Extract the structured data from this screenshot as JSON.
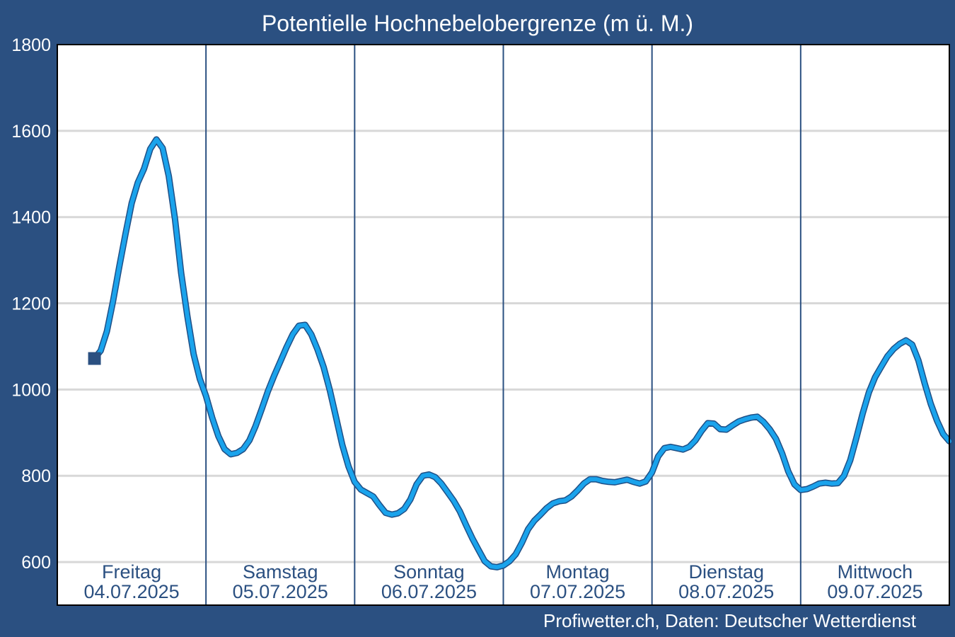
{
  "chart_data": {
    "type": "line",
    "title": "Potentielle Hochnebelobergrenze (m ü. M.)",
    "ylim": [
      500,
      1800
    ],
    "xlim": [
      0,
      144
    ],
    "yticks": [
      600,
      800,
      1000,
      1200,
      1400,
      1600,
      1800
    ],
    "grid": true,
    "days": [
      {
        "weekday": "Freitag",
        "date": "04.07.2025"
      },
      {
        "weekday": "Samstag",
        "date": "05.07.2025"
      },
      {
        "weekday": "Sonntag",
        "date": "06.07.2025"
      },
      {
        "weekday": "Montag",
        "date": "07.07.2025"
      },
      {
        "weekday": "Dienstag",
        "date": "08.07.2025"
      },
      {
        "weekday": "Mittwoch",
        "date": "09.07.2025"
      }
    ],
    "series": [
      {
        "color": "#1aa3ec",
        "start_marker_color": "#2b5081",
        "x": [
          6,
          7,
          8,
          9,
          10,
          11,
          12,
          13,
          14,
          15,
          16,
          17,
          18,
          19,
          20,
          21,
          22,
          23,
          24,
          25,
          26,
          27,
          28,
          29,
          30,
          31,
          32,
          33,
          34,
          35,
          36,
          37,
          38,
          39,
          40,
          41,
          42,
          43,
          44,
          45,
          46,
          47,
          48,
          49,
          50,
          51,
          52,
          53,
          54,
          55,
          56,
          57,
          58,
          59,
          60,
          61,
          62,
          63,
          64,
          65,
          66,
          67,
          68,
          69,
          70,
          71,
          72,
          73,
          74,
          75,
          76,
          77,
          78,
          79,
          80,
          81,
          82,
          83,
          84,
          85,
          86,
          87,
          88,
          89,
          90,
          91,
          92,
          93,
          94,
          95,
          96,
          97,
          98,
          99,
          100,
          101,
          102,
          103,
          104,
          105,
          106,
          107,
          108,
          109,
          110,
          111,
          112,
          113,
          114,
          115,
          116,
          117,
          118,
          119,
          120,
          121,
          122,
          123,
          124,
          125,
          126,
          127,
          128,
          129,
          130,
          131,
          132,
          133,
          134,
          135,
          136,
          137,
          138,
          139,
          140,
          141,
          142,
          143,
          144
        ],
        "y": [
          1072,
          1090,
          1135,
          1205,
          1285,
          1360,
          1432,
          1480,
          1512,
          1558,
          1580,
          1560,
          1495,
          1395,
          1270,
          1170,
          1082,
          1025,
          985,
          935,
          892,
          862,
          850,
          853,
          862,
          882,
          915,
          955,
          996,
          1032,
          1065,
          1098,
          1128,
          1148,
          1150,
          1128,
          1093,
          1052,
          998,
          935,
          872,
          822,
          786,
          768,
          760,
          752,
          732,
          714,
          710,
          713,
          723,
          745,
          780,
          800,
          803,
          797,
          782,
          762,
          742,
          717,
          685,
          655,
          628,
          602,
          590,
          588,
          592,
          602,
          618,
          645,
          676,
          696,
          710,
          725,
          736,
          741,
          743,
          752,
          766,
          782,
          792,
          792,
          788,
          786,
          785,
          788,
          791,
          786,
          782,
          787,
          808,
          845,
          864,
          867,
          864,
          861,
          867,
          882,
          904,
          922,
          921,
          908,
          907,
          917,
          926,
          931,
          935,
          937,
          925,
          908,
          886,
          852,
          810,
          780,
          767,
          769,
          775,
          782,
          784,
          782,
          783,
          800,
          836,
          888,
          944,
          993,
          1028,
          1053,
          1077,
          1094,
          1106,
          1114,
          1104,
          1068,
          1015,
          967,
          928,
          897,
          880
        ]
      }
    ],
    "source": "Profiwetter.ch, Daten: Deutscher Wetterdienst"
  }
}
